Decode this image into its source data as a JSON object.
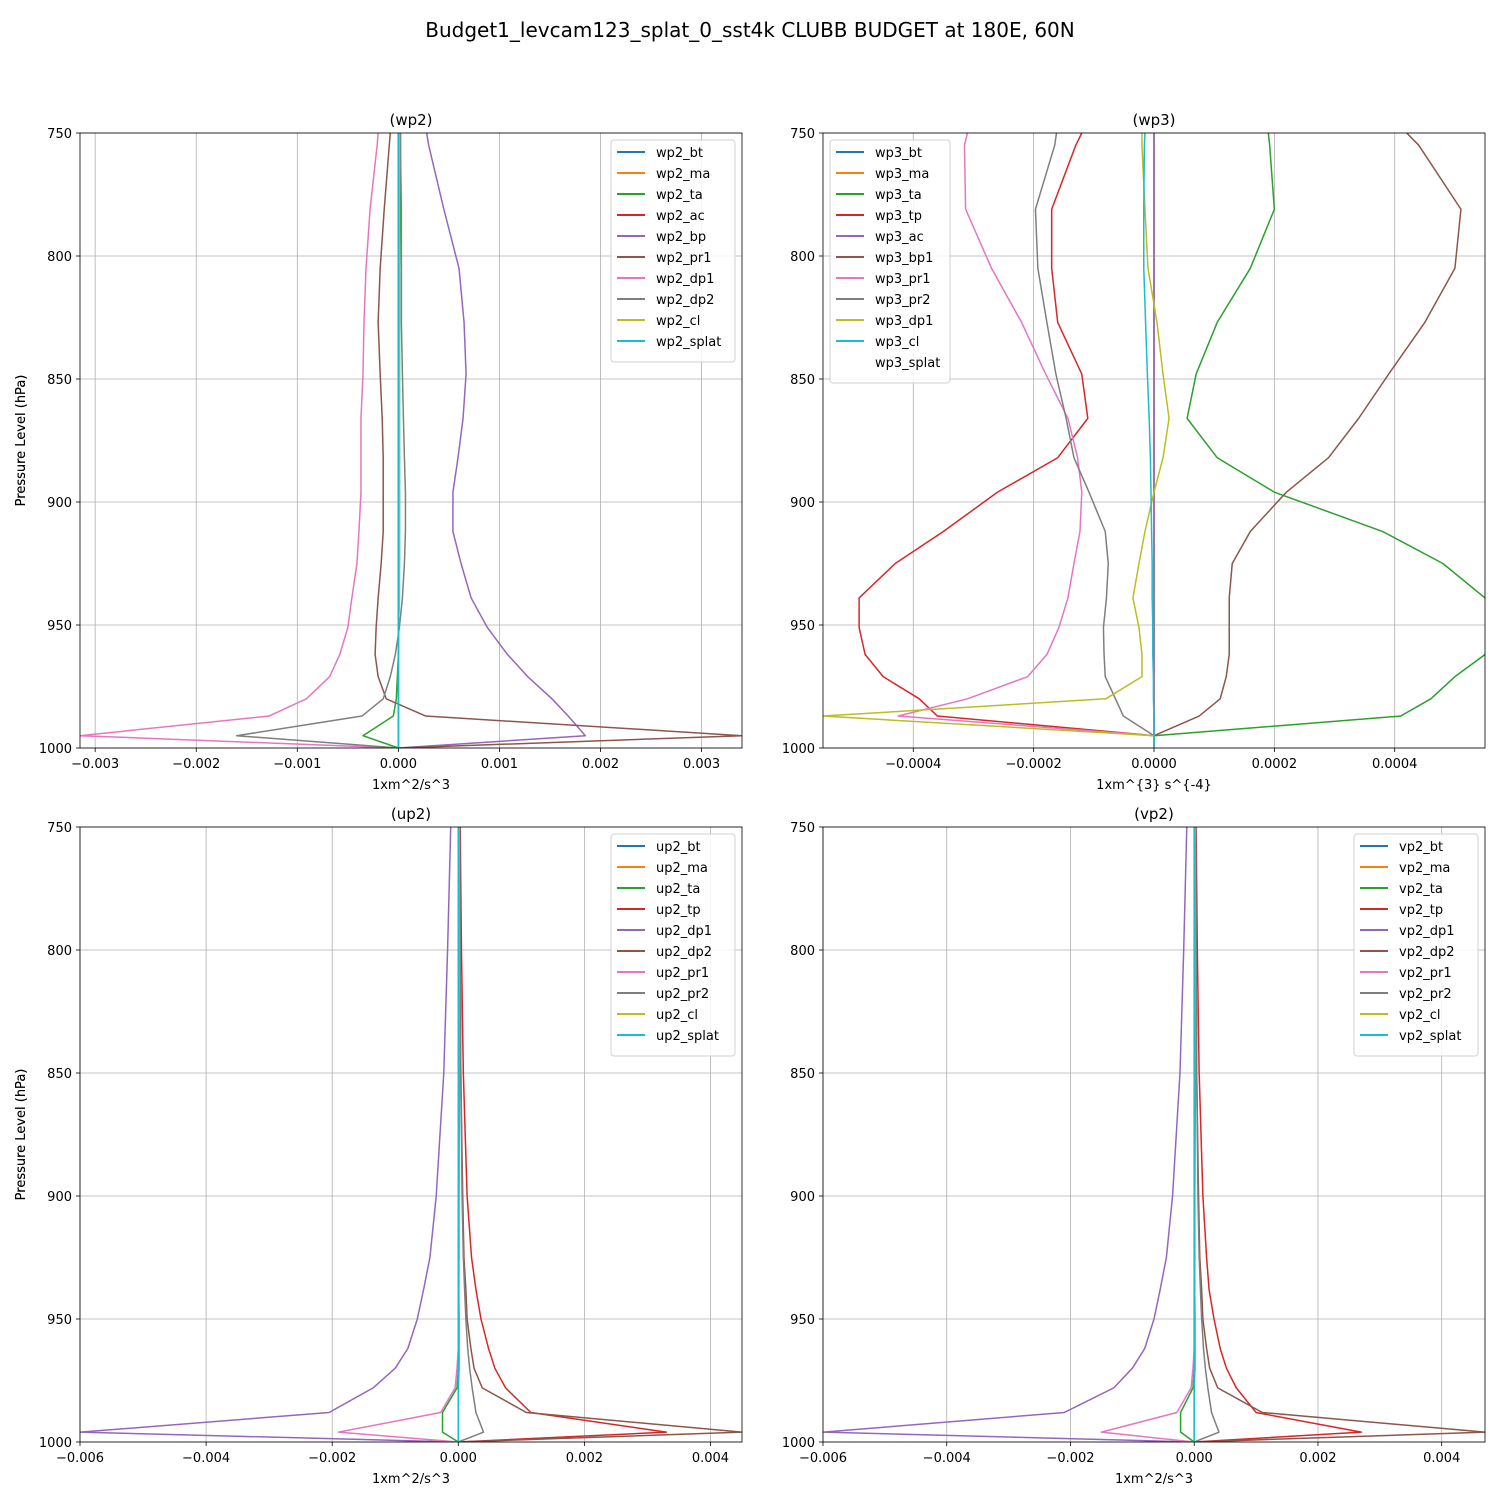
{
  "figure_title": "Budget1_levcam123_splat_0_sst4k CLUBB BUDGET at 180E, 60N",
  "colors": [
    "#1f77b4",
    "#ff7f0e",
    "#2ca02c",
    "#d62728",
    "#9467bd",
    "#8c564b",
    "#e377c2",
    "#7f7f7f",
    "#bcbd22",
    "#17becf"
  ],
  "chart_data": [
    {
      "type": "line",
      "title": "(wp2)",
      "xlabel": "1xm^2/s^3",
      "ylabel": "Pressure Level (hPa)",
      "xlim": [
        -0.00315,
        0.0034
      ],
      "ylim": [
        1000,
        750
      ],
      "xticks": [
        -0.003,
        -0.002,
        -0.001,
        0.0,
        0.001,
        0.002,
        0.003
      ],
      "xtick_labels": [
        "−0.003",
        "−0.002",
        "−0.001",
        "0.000",
        "0.001",
        "0.002",
        "0.003"
      ],
      "yticks": [
        750,
        800,
        850,
        900,
        950,
        1000
      ],
      "ytick_labels": [
        "750",
        "800",
        "850",
        "900",
        "950",
        "1000"
      ],
      "grid": true,
      "legend_position": "top-right",
      "y": [
        750,
        755,
        781,
        805,
        827,
        848,
        866,
        882,
        896,
        912,
        925,
        939,
        951,
        962,
        971,
        980,
        987,
        995,
        1000
      ],
      "series": [
        {
          "name": "wp2_bt",
          "values": [
            2e-05,
            2e-05,
            2e-05,
            1e-05,
            1e-05,
            1e-05,
            1e-05,
            1e-05,
            1e-05,
            1e-05,
            1e-05,
            1e-05,
            0.0,
            0.0,
            0.0,
            0.0,
            0.0,
            0.0,
            0.0
          ]
        },
        {
          "name": "wp2_ma",
          "values": [
            0,
            0,
            0,
            0,
            0,
            0,
            0,
            0,
            0,
            0,
            0,
            0,
            0,
            0,
            0,
            0,
            0,
            0,
            0
          ]
        },
        {
          "name": "wp2_ta",
          "values": [
            2e-05,
            2e-05,
            2e-05,
            1e-05,
            1e-05,
            1e-05,
            1e-05,
            1e-05,
            1e-05,
            1e-05,
            1e-05,
            0.0,
            0.0,
            0.0,
            -1e-05,
            -2e-05,
            -5e-05,
            -0.00035,
            0.0
          ]
        },
        {
          "name": "wp2_ac",
          "values": [
            0,
            0,
            0,
            0,
            0,
            0,
            0,
            0,
            0,
            0,
            0,
            0,
            0,
            0,
            0,
            0,
            0,
            0,
            0
          ]
        },
        {
          "name": "wp2_bp",
          "values": [
            0.00028,
            0.0003,
            0.00045,
            0.0006,
            0.00065,
            0.00067,
            0.00064,
            0.00059,
            0.00054,
            0.00054,
            0.00062,
            0.00072,
            0.00088,
            0.00108,
            0.00128,
            0.00152,
            0.00168,
            0.00185,
            0.0
          ]
        },
        {
          "name": "wp2_pr1",
          "values": [
            -8e-05,
            -9e-05,
            -0.00014,
            -0.00018,
            -0.0002,
            -0.00018,
            -0.00016,
            -0.00015,
            -0.00015,
            -0.00015,
            -0.00017,
            -0.0002,
            -0.00022,
            -0.00023,
            -0.0002,
            -0.00012,
            0.00027,
            0.0034,
            0.0
          ]
        },
        {
          "name": "wp2_dp1",
          "values": [
            -0.0002,
            -0.00021,
            -0.00028,
            -0.00032,
            -0.00034,
            -0.00035,
            -0.00037,
            -0.00037,
            -0.00037,
            -0.00039,
            -0.00041,
            -0.00046,
            -0.0005,
            -0.00058,
            -0.00068,
            -0.00091,
            -0.00128,
            -0.00315,
            0.0
          ]
        },
        {
          "name": "wp2_dp2",
          "values": [
            2e-05,
            2e-05,
            3e-05,
            3e-05,
            3e-05,
            4e-05,
            5e-05,
            6e-05,
            7e-05,
            7e-05,
            6e-05,
            4e-05,
            1e-05,
            -3e-05,
            -8e-05,
            -0.00015,
            -0.00036,
            -0.0016,
            0.0
          ]
        },
        {
          "name": "wp2_cl",
          "values": [
            1e-05,
            1e-05,
            1e-05,
            1e-05,
            1e-05,
            1e-05,
            1e-05,
            1e-05,
            1e-05,
            1e-05,
            1e-05,
            1e-05,
            0.0,
            0.0,
            0.0,
            0.0,
            0.0,
            0.0,
            0.0
          ]
        },
        {
          "name": "wp2_splat",
          "values": [
            0,
            0,
            0,
            0,
            0,
            0,
            0,
            0,
            0,
            0,
            0,
            0,
            0,
            0,
            0,
            0,
            0,
            0,
            0
          ]
        }
      ]
    },
    {
      "type": "line",
      "title": "(wp3)",
      "xlabel": "1xm^{3} s^{-4}",
      "ylabel": "Pressure Level (hPa)",
      "xlim": [
        -0.00055,
        0.00055
      ],
      "ylim": [
        1000,
        750
      ],
      "xticks": [
        -0.0004,
        -0.0002,
        0.0,
        0.0002,
        0.0004
      ],
      "xtick_labels": [
        "−0.0004",
        "−0.0002",
        "0.0000",
        "0.0002",
        "0.0004"
      ],
      "yticks": [
        750,
        800,
        850,
        900,
        950,
        1000
      ],
      "ytick_labels": [
        "750",
        "800",
        "850",
        "900",
        "950",
        "1000"
      ],
      "grid": true,
      "legend_position": "top-left",
      "y": [
        750,
        755,
        781,
        805,
        827,
        848,
        866,
        882,
        896,
        912,
        925,
        939,
        951,
        962,
        971,
        980,
        987,
        995,
        1000
      ],
      "series": [
        {
          "name": "wp3_bt",
          "values": [
            0,
            0,
            0,
            0,
            0,
            0,
            0,
            0,
            0,
            0,
            0,
            0,
            0,
            0,
            0,
            0,
            0,
            0,
            0
          ]
        },
        {
          "name": "wp3_ma",
          "values": [
            0,
            0,
            0,
            0,
            0,
            0,
            0,
            0,
            0,
            0,
            0,
            0,
            0,
            0,
            0,
            0,
            0,
            0,
            0
          ]
        },
        {
          "name": "wp3_ta",
          "values": [
            0.00019,
            0.0001922,
            0.0002,
            0.00016,
            0.000105,
            7e-05,
            5.5e-05,
            0.000105,
            0.0002,
            0.00038,
            0.00048,
            0.00055,
            0.00056,
            0.00055,
            0.0005,
            0.00046,
            0.00041,
            0.0,
            0.0
          ]
        },
        {
          "name": "wp3_tp",
          "values": [
            -0.00012,
            -0.00013,
            -0.00017,
            -0.00017,
            -0.00016,
            -0.00012,
            -0.00011,
            -0.00016,
            -0.00026,
            -0.00035,
            -0.00043,
            -0.00049,
            -0.00049,
            -0.00048,
            -0.00045,
            -0.00039,
            -0.00036,
            0.0,
            0.0
          ]
        },
        {
          "name": "wp3_ac",
          "values": [
            0,
            0,
            0,
            0,
            0,
            0,
            0,
            0,
            0,
            0,
            0,
            0,
            0,
            0,
            0,
            0,
            0,
            0,
            0
          ]
        },
        {
          "name": "wp3_bp1",
          "values": [
            0.00042,
            0.00044,
            0.00051,
            0.0005,
            0.00045,
            0.00039,
            0.00034,
            0.00029,
            0.00022,
            0.00016,
            0.00013,
            0.000125,
            0.000125,
            0.000125,
            0.00012,
            0.00011,
            7.5e-05,
            0.0,
            0.0
          ]
        },
        {
          "name": "wp3_pr1",
          "values": [
            -0.00031,
            -0.000315,
            -0.000313,
            -0.00027,
            -0.00022,
            -0.00018,
            -0.000143,
            -0.000127,
            -0.00012,
            -0.000123,
            -0.000133,
            -0.000143,
            -0.000158,
            -0.000178,
            -0.00021,
            -0.00031,
            -0.000425,
            0.0,
            0.0
          ]
        },
        {
          "name": "wp3_pr2",
          "values": [
            -0.000162,
            -0.000165,
            -0.000197,
            -0.000193,
            -0.000178,
            -0.000163,
            -0.000146,
            -0.000133,
            -0.000108,
            -8.1e-05,
            -7.6e-05,
            -7.9e-05,
            -8.4e-05,
            -8.3e-05,
            -8.1e-05,
            -6.4e-05,
            -5.1e-05,
            0.0,
            0.0
          ]
        },
        {
          "name": "wp3_dp1",
          "values": [
            -2e-05,
            -2e-05,
            -1.5e-05,
            -1e-05,
            5e-06,
            1.5e-05,
            2.5e-05,
            1.5e-05,
            0.0,
            -1.5e-05,
            -2.5e-05,
            -3.5e-05,
            -2.5e-05,
            -2e-05,
            -2e-05,
            -8e-05,
            -0.00055,
            0.0,
            0.0
          ]
        },
        {
          "name": "wp3_cl",
          "values": [
            -1.5e-05,
            -1.6e-05,
            -1.7e-05,
            -1.7e-05,
            -1.4e-05,
            -1.1e-05,
            -8e-06,
            -6e-06,
            -5e-06,
            -4e-06,
            -3e-06,
            -3e-06,
            -2e-06,
            -2e-06,
            -1e-06,
            -1e-06,
            0.0,
            0.0,
            0.0
          ]
        },
        {
          "name": "wp3_splat",
          "values": [
            0,
            0,
            0,
            0,
            0,
            0,
            0,
            0,
            0,
            0,
            0,
            0,
            0,
            0,
            0,
            0,
            0,
            0,
            0
          ]
        }
      ]
    },
    {
      "type": "line",
      "title": "(up2)",
      "xlabel": "1xm^2/s^3",
      "ylabel": "Pressure Level (hPa)",
      "xlim": [
        -0.006,
        0.0045
      ],
      "ylim": [
        1000,
        750
      ],
      "xticks": [
        -0.006,
        -0.004,
        -0.002,
        0.0,
        0.002,
        0.004
      ],
      "xtick_labels": [
        "−0.006",
        "−0.004",
        "−0.002",
        "0.000",
        "0.002",
        "0.004"
      ],
      "yticks": [
        750,
        800,
        850,
        900,
        950,
        1000
      ],
      "ytick_labels": [
        "750",
        "800",
        "850",
        "900",
        "950",
        "1000"
      ],
      "grid": true,
      "legend_position": "top-right",
      "y": [
        750,
        800,
        850,
        900,
        925,
        938,
        950,
        962,
        970,
        978,
        988,
        996,
        1000
      ],
      "series": [
        {
          "name": "up2_bt",
          "values": [
            2e-05,
            2e-05,
            2e-05,
            1e-05,
            1e-05,
            1e-05,
            1e-05,
            1e-05,
            1e-05,
            0.0,
            0.0,
            0.0,
            0.0
          ]
        },
        {
          "name": "up2_ma",
          "values": [
            0,
            0,
            0,
            0,
            0,
            0,
            0,
            0,
            0,
            0,
            0,
            0,
            0
          ]
        },
        {
          "name": "up2_ta",
          "values": [
            2e-05,
            2e-05,
            1e-05,
            1e-05,
            1e-05,
            0.0,
            0.0,
            0.0,
            0.0,
            -2e-05,
            -0.00025,
            -0.00025,
            0.0
          ]
        },
        {
          "name": "up2_tp",
          "values": [
            3e-05,
            5e-05,
            8e-05,
            0.00014,
            0.00021,
            0.00028,
            0.00036,
            0.00048,
            0.00058,
            0.00075,
            0.00115,
            0.0033,
            0.0
          ]
        },
        {
          "name": "up2_dp1",
          "values": [
            -0.00012,
            -0.00017,
            -0.00023,
            -0.00035,
            -0.00045,
            -0.00055,
            -0.00065,
            -0.0008,
            -0.001,
            -0.00135,
            -0.00205,
            -0.006,
            0.0
          ]
        },
        {
          "name": "up2_dp2",
          "values": [
            2e-05,
            3e-05,
            4e-05,
            7e-05,
            9e-05,
            0.00012,
            0.00014,
            0.0002,
            0.00025,
            0.00038,
            0.00108,
            0.0045,
            0.0
          ]
        },
        {
          "name": "up2_pr1",
          "values": [
            0.0,
            0.0,
            0.0,
            0.0,
            0.0,
            0.0,
            0.0,
            0.0,
            -2e-05,
            -5e-05,
            -0.00028,
            -0.0019,
            0.0
          ]
        },
        {
          "name": "up2_pr2",
          "values": [
            2e-05,
            3e-05,
            4e-05,
            6e-05,
            8e-05,
            0.0001,
            0.00012,
            0.00015,
            0.00018,
            0.00022,
            0.00028,
            0.0004,
            0.0
          ]
        },
        {
          "name": "up2_cl",
          "values": [
            1e-05,
            1e-05,
            1e-05,
            1e-05,
            1e-05,
            1e-05,
            0.0,
            0.0,
            0.0,
            0.0,
            0.0,
            0.0,
            0.0
          ]
        },
        {
          "name": "up2_splat",
          "values": [
            0,
            0,
            0,
            0,
            0,
            0,
            0,
            0,
            0,
            0,
            0,
            0,
            0
          ]
        }
      ]
    },
    {
      "type": "line",
      "title": "(vp2)",
      "xlabel": "1xm^2/s^3",
      "ylabel": "Pressure Level (hPa)",
      "xlim": [
        -0.006,
        0.0047
      ],
      "ylim": [
        1000,
        750
      ],
      "xticks": [
        -0.006,
        -0.004,
        -0.002,
        0.0,
        0.002,
        0.004
      ],
      "xtick_labels": [
        "−0.006",
        "−0.004",
        "−0.002",
        "0.000",
        "0.002",
        "0.004"
      ],
      "yticks": [
        750,
        800,
        850,
        900,
        950,
        1000
      ],
      "ytick_labels": [
        "750",
        "800",
        "850",
        "900",
        "950",
        "1000"
      ],
      "grid": true,
      "legend_position": "top-right",
      "y": [
        750,
        800,
        850,
        900,
        925,
        938,
        950,
        962,
        970,
        978,
        988,
        996,
        1000
      ],
      "series": [
        {
          "name": "vp2_bt",
          "values": [
            2e-05,
            2e-05,
            2e-05,
            1e-05,
            1e-05,
            1e-05,
            1e-05,
            1e-05,
            1e-05,
            0.0,
            0.0,
            0.0,
            0.0
          ]
        },
        {
          "name": "vp2_ma",
          "values": [
            0,
            0,
            0,
            0,
            0,
            0,
            0,
            0,
            0,
            0,
            0,
            0,
            0
          ]
        },
        {
          "name": "vp2_ta",
          "values": [
            2e-05,
            2e-05,
            1e-05,
            1e-05,
            1e-05,
            0.0,
            0.0,
            0.0,
            0.0,
            -2e-05,
            -0.00022,
            -0.00022,
            0.0
          ]
        },
        {
          "name": "vp2_tp",
          "values": [
            3e-05,
            5e-05,
            8e-05,
            0.00014,
            0.0002,
            0.00024,
            0.00032,
            0.00042,
            0.00052,
            0.00068,
            0.001,
            0.0027,
            0.0
          ]
        },
        {
          "name": "vp2_dp1",
          "values": [
            -0.00012,
            -0.00017,
            -0.00023,
            -0.00035,
            -0.00045,
            -0.00055,
            -0.00065,
            -0.0008,
            -0.001,
            -0.0013,
            -0.0021,
            -0.006,
            0.0
          ]
        },
        {
          "name": "vp2_dp2",
          "values": [
            2e-05,
            3e-05,
            4e-05,
            7e-05,
            9e-05,
            0.00012,
            0.00014,
            0.0002,
            0.00025,
            0.00038,
            0.0011,
            0.0047,
            0.0
          ]
        },
        {
          "name": "vp2_pr1",
          "values": [
            0.0,
            0.0,
            0.0,
            0.0,
            0.0,
            0.0,
            0.0,
            0.0,
            -2e-05,
            -5e-05,
            -0.00028,
            -0.0015,
            0.0
          ]
        },
        {
          "name": "vp2_pr2",
          "values": [
            2e-05,
            3e-05,
            4e-05,
            6e-05,
            8e-05,
            0.0001,
            0.00012,
            0.00015,
            0.00018,
            0.00022,
            0.00028,
            0.0004,
            0.0
          ]
        },
        {
          "name": "vp2_cl",
          "values": [
            1e-05,
            1e-05,
            1e-05,
            1e-05,
            1e-05,
            1e-05,
            0.0,
            0.0,
            0.0,
            0.0,
            0.0,
            0.0,
            0.0
          ]
        },
        {
          "name": "vp2_splat",
          "values": [
            0,
            0,
            0,
            0,
            0,
            0,
            0,
            0,
            0,
            0,
            0,
            0,
            0
          ]
        }
      ]
    }
  ]
}
